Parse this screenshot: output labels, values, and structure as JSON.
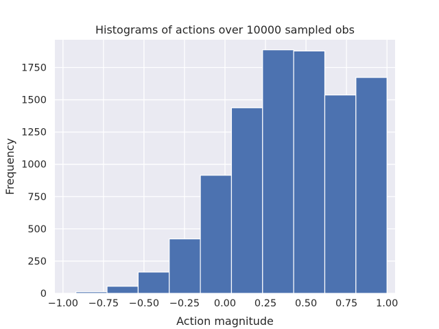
{
  "chart_data": {
    "type": "bar",
    "title": "Histograms of actions over 10000 sampled obs",
    "xlabel": "Action magnitude",
    "ylabel": "Frequency",
    "xlim": [
      -1.05,
      1.05
    ],
    "ylim": [
      0,
      1965
    ],
    "grid": true,
    "x_ticks": [
      -1.0,
      -0.75,
      -0.5,
      -0.25,
      0.0,
      0.25,
      0.5,
      0.75,
      1.0
    ],
    "x_tick_labels": [
      "−1.00",
      "−0.75",
      "−0.50",
      "−0.25",
      "0.00",
      "0.25",
      "0.50",
      "0.75",
      "1.00"
    ],
    "y_ticks": [
      0,
      250,
      500,
      750,
      1000,
      1250,
      1500,
      1750
    ],
    "y_tick_labels": [
      "0",
      "250",
      "500",
      "750",
      "1000",
      "1250",
      "1500",
      "1750"
    ],
    "bin_edges": [
      -0.92,
      -0.728,
      -0.536,
      -0.344,
      -0.152,
      0.04,
      0.232,
      0.424,
      0.616,
      0.808,
      1.0
    ],
    "values": [
      12,
      55,
      165,
      422,
      915,
      1438,
      1887,
      1878,
      1537,
      1673
    ],
    "colors": {
      "bar": "#4c72b0",
      "plot_background": "#eaeaf2",
      "grid": "#ffffff"
    }
  }
}
